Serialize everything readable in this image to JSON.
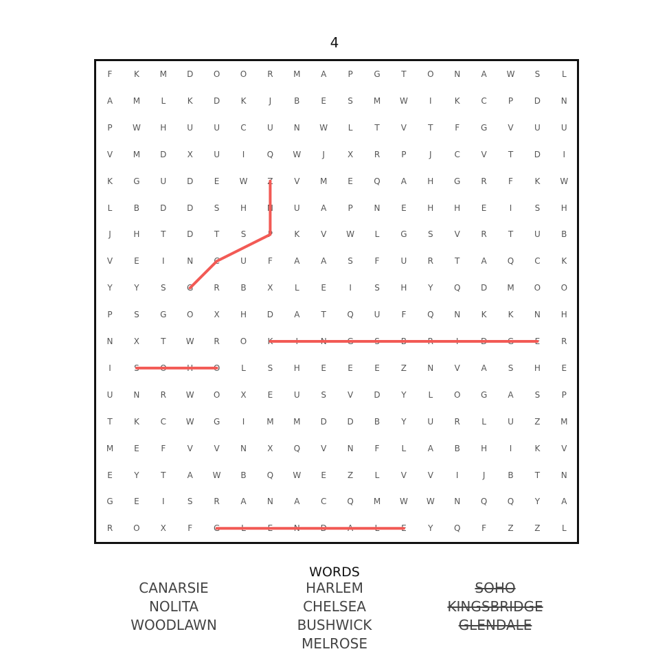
{
  "puzzle": {
    "number": "4",
    "grid": [
      "FKMDOORMAPGTONAWSL",
      "AMLKDKJBESMWIKCPDN",
      "PWHUUCUNWLTVTFGVUU",
      "VMDXUIQWJXRPJCVTDI",
      "KGUDEWZVMEQAHGRFKW",
      "LBDDSHNUAPNEHHEISH",
      "JHTDTSPKVWLGSVRTUB",
      "VEINCUFAASFURTAQCK",
      "YYSGRBXLEISHYQDMOO",
      "PSGOXHDATQUFQNKKNH",
      "NXTWROKINGSBRIDGER",
      "ISOHOLSHEEEZNVASHE",
      "UNRWOXEUSVDYLOGASP",
      "TKCWGIMMDDBYURLUZM",
      "MEFVVNXQVNFLABHIKV",
      "EYTAWBQWEZLVVIJBTN",
      "GEISRANACQMWWNQQYA",
      "ROXFGLENDALEYQFZZL"
    ],
    "found_lines": [
      {
        "word": "KINGSBRIDGE",
        "cells": [
          [
            10,
            6
          ],
          [
            10,
            16
          ]
        ]
      },
      {
        "word": "SOHO",
        "cells": [
          [
            11,
            1
          ],
          [
            11,
            4
          ]
        ]
      },
      {
        "word": "GLENDALE",
        "cells": [
          [
            17,
            4
          ],
          [
            17,
            11
          ]
        ]
      },
      {
        "cells": [
          [
            4,
            6
          ],
          [
            6,
            6
          ],
          [
            7,
            4
          ],
          [
            8,
            3
          ]
        ]
      }
    ],
    "line_color": "#f25a55"
  },
  "word_list": {
    "title": "WORDS",
    "columns": [
      [
        {
          "text": "CANARSIE",
          "found": false
        },
        {
          "text": "NOLITA",
          "found": false
        },
        {
          "text": "WOODLAWN",
          "found": false
        }
      ],
      [
        {
          "text": "HARLEM",
          "found": false
        },
        {
          "text": "CHELSEA",
          "found": false
        },
        {
          "text": "BUSHWICK",
          "found": false
        },
        {
          "text": "MELROSE",
          "found": false
        }
      ],
      [
        {
          "text": "SOHO",
          "found": true
        },
        {
          "text": "KINGSBRIDGE",
          "found": true
        },
        {
          "text": "GLENDALE",
          "found": true
        }
      ]
    ]
  }
}
